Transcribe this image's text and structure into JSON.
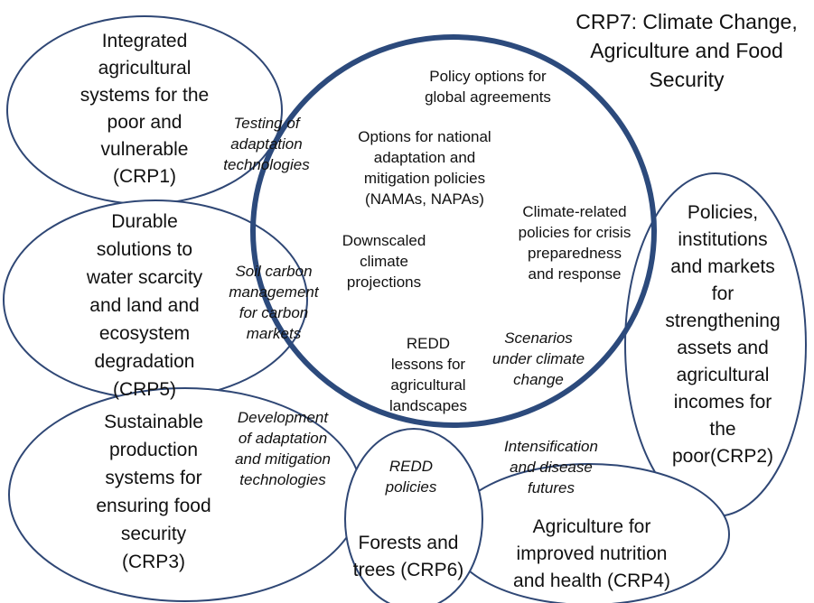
{
  "title": {
    "lines": [
      "CRP7: Climate Change,",
      "Agriculture and Food",
      "Security"
    ]
  },
  "programs": [
    {
      "lines": [
        "Integrated",
        "agricultural",
        "systems for the",
        "poor and",
        "vulnerable",
        "(CRP1)"
      ]
    },
    {
      "lines": [
        "Durable",
        "solutions to",
        "water scarcity",
        "and land and",
        "ecosystem",
        "degradation",
        "(CRP5)"
      ]
    },
    {
      "lines": [
        "Sustainable",
        "production",
        "systems for",
        "ensuring food",
        "security",
        "(CRP3)"
      ]
    },
    {
      "lines": [
        "Forests and",
        "trees (CRP6)"
      ]
    },
    {
      "lines": [
        "Agriculture for",
        "improved nutrition",
        "and health (CRP4)"
      ]
    },
    {
      "lines": [
        "Policies,",
        "institutions",
        "and markets",
        "for",
        "strengthening",
        "assets and",
        "agricultural",
        "incomes for",
        "the",
        "poor(CRP2)"
      ]
    }
  ],
  "outputs": [
    {
      "lines": [
        "Policy options for",
        "global agreements"
      ]
    },
    {
      "lines": [
        "Options for national",
        "adaptation and",
        "mitigation policies",
        "(NAMAs, NAPAs)"
      ]
    },
    {
      "lines": [
        "Climate-related",
        "policies for crisis",
        "preparedness",
        "and response"
      ]
    },
    {
      "lines": [
        "Downscaled",
        "climate",
        "projections"
      ]
    },
    {
      "lines": [
        "REDD",
        "lessons for",
        "agricultural",
        "landscapes"
      ]
    }
  ],
  "linkages": [
    {
      "lines": [
        "Testing of",
        "adaptation",
        "technologies"
      ]
    },
    {
      "lines": [
        "Soil carbon",
        "management",
        "for carbon",
        "markets"
      ]
    },
    {
      "lines": [
        "Development",
        "of adaptation",
        "and mitigation",
        "technologies"
      ]
    },
    {
      "lines": [
        "REDD",
        "policies"
      ]
    },
    {
      "lines": [
        "Intensification",
        "and disease",
        "futures"
      ]
    },
    {
      "lines": [
        "Scenarios",
        "under climate",
        "change"
      ]
    }
  ]
}
